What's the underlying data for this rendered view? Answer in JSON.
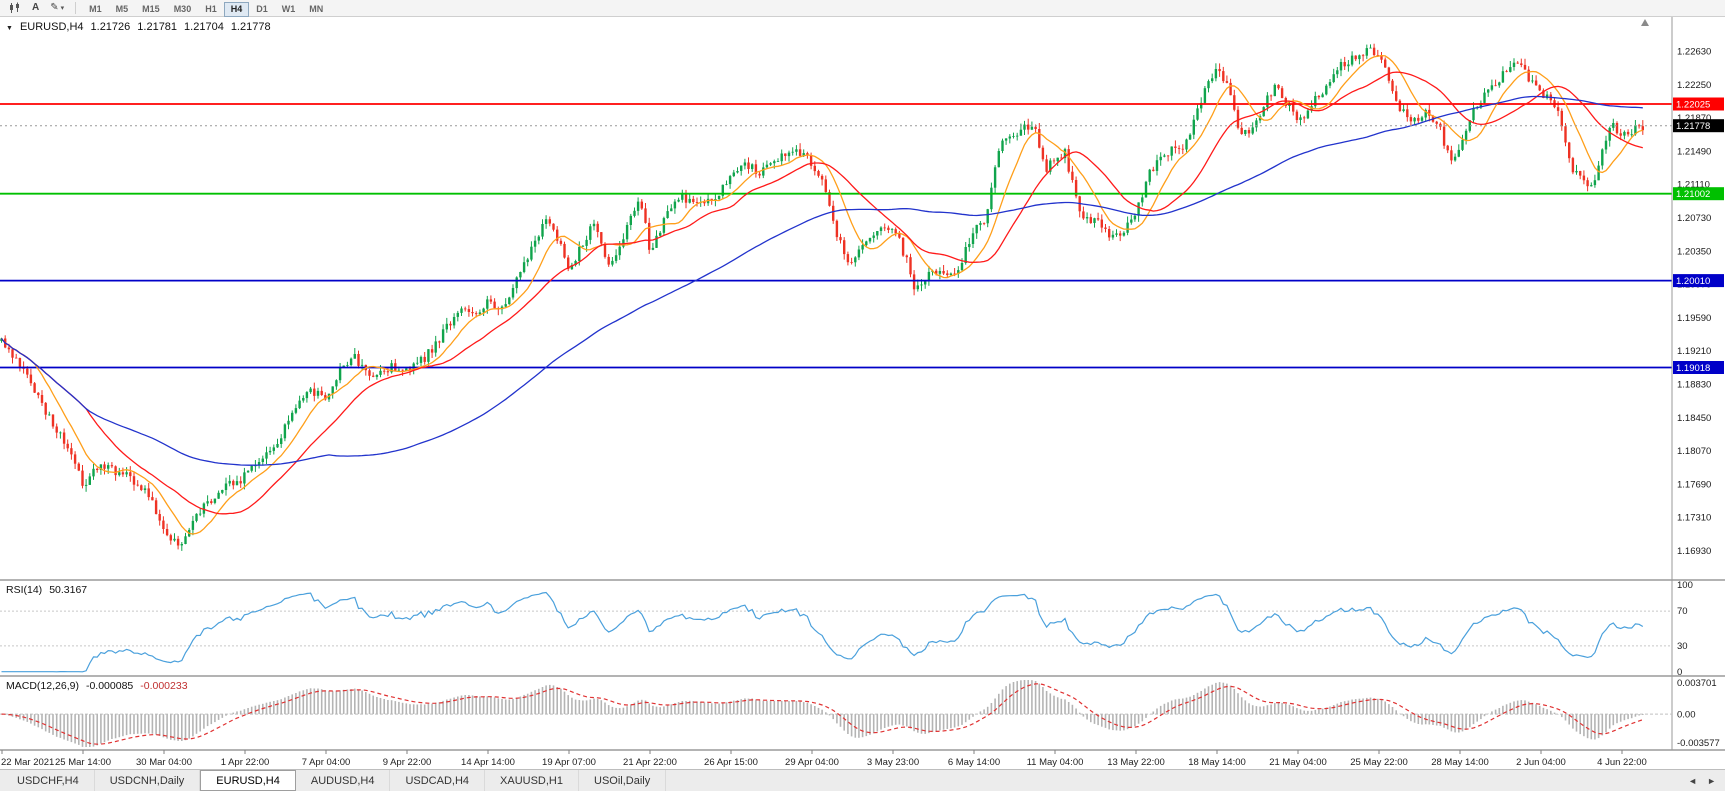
{
  "icons": {
    "caret_down": "▼",
    "dropdown_caret": "▾",
    "pencil": "✎",
    "scroll_left": "◄",
    "scroll_right": "►"
  },
  "toolbar": {
    "cursor_label": "A",
    "timeframes": [
      "M1",
      "M5",
      "M15",
      "M30",
      "H1",
      "H4",
      "D1",
      "W1",
      "MN"
    ],
    "active_timeframe": "H4"
  },
  "chart": {
    "symbol": "EURUSD,H4",
    "ohlc": {
      "open": "1.21726",
      "high": "1.21781",
      "low": "1.21704",
      "close": "1.21778"
    }
  },
  "indicators": {
    "rsi": {
      "name": "RSI(14)",
      "value": "50.3167",
      "scale_labels": [
        "100",
        "70",
        "30",
        "0"
      ],
      "levels": [
        70,
        30
      ],
      "line_color": "#4aa0dc"
    },
    "macd": {
      "name": "MACD(12,26,9)",
      "value_main": "-0.000085",
      "value_signal": "-0.000233",
      "scale_labels": [
        "0.003701",
        "0.00",
        "-0.003577"
      ],
      "range": [
        -0.003577,
        0.003701
      ],
      "histogram_color": "#b4b4b4",
      "signal_color": "#e03232"
    }
  },
  "tabs": {
    "active": "EURUSD,H4",
    "items": [
      "USDCHF,H4",
      "USDCNH,Daily",
      "EURUSD,H4",
      "AUDUSD,H4",
      "USDCAD,H4",
      "XAUUSD,H1",
      "USOil,Daily"
    ]
  },
  "chart_data": {
    "type": "candlestick",
    "symbol": "EURUSD",
    "timeframe": "H4",
    "current_price": 1.21778,
    "ohlc_current": {
      "open": 1.21726,
      "high": 1.21781,
      "low": 1.21704,
      "close": 1.21778
    },
    "price_axis": {
      "top": 1.2263,
      "step": 0.0038,
      "labels": [
        "1.22630",
        "1.22250",
        "1.21870",
        "1.21490",
        "1.21110",
        "1.20730",
        "1.20350",
        "1.19970",
        "1.19590",
        "1.19210",
        "1.18830",
        "1.18450",
        "1.18070",
        "1.17690",
        "1.17310",
        "1.16930"
      ]
    },
    "time_axis_labels": [
      "22 Mar 2021",
      "25 Mar 14:00",
      "30 Mar 04:00",
      "1 Apr 22:00",
      "7 Apr 04:00",
      "9 Apr 22:00",
      "14 Apr 14:00",
      "19 Apr 07:00",
      "21 Apr 22:00",
      "26 Apr 15:00",
      "29 Apr 04:00",
      "3 May 23:00",
      "6 May 14:00",
      "11 May 04:00",
      "13 May 22:00",
      "18 May 14:00",
      "21 May 04:00",
      "25 May 22:00",
      "28 May 14:00",
      "2 Jun 04:00",
      "4 Jun 22:00"
    ],
    "horizontal_lines": [
      {
        "price": 1.22025,
        "label": "1.22025",
        "color": "#ff0000"
      },
      {
        "price": 1.21002,
        "label": "1.21002",
        "color": "#00c000"
      },
      {
        "price": 1.2001,
        "label": "1.20010",
        "color": "#0000c8"
      },
      {
        "price": 1.19018,
        "label": "1.19018",
        "color": "#0000c8"
      }
    ],
    "current_price_badge": {
      "label": "1.21778",
      "color": "#000000"
    },
    "moving_averages": [
      {
        "window": 10,
        "color": "#ff9f1a"
      },
      {
        "window": 24,
        "color": "#ff1a1a"
      },
      {
        "window": 90,
        "color": "#2233cc"
      }
    ],
    "candle_colors": {
      "up": "#10a44c",
      "down": "#ee3224"
    },
    "price_path_anchors": [
      [
        2,
        1.1932
      ],
      [
        25,
        1.1895
      ],
      [
        45,
        1.1852
      ],
      [
        65,
        1.1815
      ],
      [
        83,
        1.1768
      ],
      [
        100,
        1.179
      ],
      [
        120,
        1.1782
      ],
      [
        140,
        1.1768
      ],
      [
        155,
        1.174
      ],
      [
        164,
        1.172
      ],
      [
        172,
        1.1708
      ],
      [
        180,
        1.1698
      ],
      [
        190,
        1.1722
      ],
      [
        205,
        1.1745
      ],
      [
        220,
        1.1762
      ],
      [
        235,
        1.177
      ],
      [
        245,
        1.1778
      ],
      [
        260,
        1.18
      ],
      [
        275,
        1.1812
      ],
      [
        295,
        1.1858
      ],
      [
        310,
        1.1875
      ],
      [
        326,
        1.1868
      ],
      [
        340,
        1.1898
      ],
      [
        355,
        1.1912
      ],
      [
        370,
        1.1888
      ],
      [
        385,
        1.1902
      ],
      [
        407,
        1.19
      ],
      [
        425,
        1.1912
      ],
      [
        445,
        1.1945
      ],
      [
        465,
        1.1972
      ],
      [
        480,
        1.1962
      ],
      [
        488,
        1.1978
      ],
      [
        500,
        1.1968
      ],
      [
        512,
        1.1992
      ],
      [
        530,
        1.2035
      ],
      [
        548,
        1.2075
      ],
      [
        560,
        1.204
      ],
      [
        569,
        1.2015
      ],
      [
        582,
        1.204
      ],
      [
        595,
        1.207
      ],
      [
        608,
        1.2013
      ],
      [
        625,
        1.2055
      ],
      [
        640,
        1.2098
      ],
      [
        650,
        1.2033
      ],
      [
        665,
        1.207
      ],
      [
        680,
        1.2098
      ],
      [
        695,
        1.2089
      ],
      [
        710,
        1.2089
      ],
      [
        725,
        1.211
      ],
      [
        731,
        1.2125
      ],
      [
        745,
        1.2134
      ],
      [
        760,
        1.2125
      ],
      [
        775,
        1.214
      ],
      [
        790,
        1.215
      ],
      [
        805,
        1.2148
      ],
      [
        812,
        1.213
      ],
      [
        820,
        1.2122
      ],
      [
        835,
        1.206
      ],
      [
        850,
        1.202
      ],
      [
        865,
        1.204
      ],
      [
        880,
        1.2063
      ],
      [
        893,
        1.2062
      ],
      [
        905,
        1.203
      ],
      [
        915,
        1.199
      ],
      [
        925,
        1.2005
      ],
      [
        940,
        1.2012
      ],
      [
        955,
        1.2003
      ],
      [
        965,
        1.2035
      ],
      [
        974,
        1.2062
      ],
      [
        985,
        1.207
      ],
      [
        995,
        1.213
      ],
      [
        1005,
        1.2168
      ],
      [
        1015,
        1.2166
      ],
      [
        1025,
        1.2175
      ],
      [
        1035,
        1.218
      ],
      [
        1045,
        1.2128
      ],
      [
        1055,
        1.214
      ],
      [
        1065,
        1.2147
      ],
      [
        1075,
        1.21
      ],
      [
        1085,
        1.2068
      ],
      [
        1095,
        1.2072
      ],
      [
        1105,
        1.2058
      ],
      [
        1115,
        1.2051
      ],
      [
        1125,
        1.206
      ],
      [
        1136,
        1.2078
      ],
      [
        1148,
        1.212
      ],
      [
        1160,
        1.2144
      ],
      [
        1172,
        1.215
      ],
      [
        1185,
        1.2155
      ],
      [
        1200,
        1.22
      ],
      [
        1210,
        1.2235
      ],
      [
        1217,
        1.224
      ],
      [
        1228,
        1.2223
      ],
      [
        1240,
        1.2165
      ],
      [
        1252,
        1.2174
      ],
      [
        1264,
        1.22
      ],
      [
        1276,
        1.2228
      ],
      [
        1288,
        1.22
      ],
      [
        1298,
        1.218
      ],
      [
        1310,
        1.22
      ],
      [
        1322,
        1.2215
      ],
      [
        1334,
        1.224
      ],
      [
        1346,
        1.225
      ],
      [
        1358,
        1.2255
      ],
      [
        1370,
        1.2266
      ],
      [
        1379,
        1.2255
      ],
      [
        1390,
        1.223
      ],
      [
        1402,
        1.2192
      ],
      [
        1414,
        1.2185
      ],
      [
        1426,
        1.2195
      ],
      [
        1438,
        1.218
      ],
      [
        1450,
        1.214
      ],
      [
        1460,
        1.215
      ],
      [
        1472,
        1.219
      ],
      [
        1484,
        1.2215
      ],
      [
        1496,
        1.2227
      ],
      [
        1508,
        1.224
      ],
      [
        1520,
        1.2254
      ],
      [
        1532,
        1.2225
      ],
      [
        1541,
        1.2212
      ],
      [
        1552,
        1.2205
      ],
      [
        1562,
        1.218
      ],
      [
        1572,
        1.2128
      ],
      [
        1582,
        1.2118
      ],
      [
        1592,
        1.2106
      ],
      [
        1602,
        1.2145
      ],
      [
        1612,
        1.218
      ],
      [
        1622,
        1.2168
      ],
      [
        1632,
        1.2172
      ],
      [
        1645,
        1.2178
      ]
    ]
  }
}
